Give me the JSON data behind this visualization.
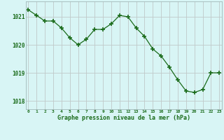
{
  "x": [
    0,
    1,
    2,
    3,
    4,
    5,
    6,
    7,
    8,
    9,
    10,
    11,
    12,
    13,
    14,
    15,
    16,
    17,
    18,
    19,
    20,
    21,
    22,
    23
  ],
  "y": [
    1021.25,
    1021.05,
    1020.85,
    1020.85,
    1020.6,
    1020.25,
    1020.0,
    1020.2,
    1020.55,
    1020.55,
    1020.75,
    1021.05,
    1021.0,
    1020.6,
    1020.3,
    1019.85,
    1019.6,
    1019.2,
    1018.75,
    1018.35,
    1018.3,
    1018.4,
    1019.0,
    1019.0
  ],
  "line_color": "#1a6b1a",
  "marker_color": "#1a6b1a",
  "bg_color": "#d8f5f5",
  "grid_color": "#c0c8c8",
  "xlabel": "Graphe pression niveau de la mer (hPa)",
  "xlabel_color": "#1a6b1a",
  "tick_label_color": "#1a6b1a",
  "ylim": [
    1017.7,
    1021.55
  ],
  "yticks": [
    1018,
    1019,
    1020,
    1021
  ],
  "xticks": [
    0,
    1,
    2,
    3,
    4,
    5,
    6,
    7,
    8,
    9,
    10,
    11,
    12,
    13,
    14,
    15,
    16,
    17,
    18,
    19,
    20,
    21,
    22,
    23
  ]
}
